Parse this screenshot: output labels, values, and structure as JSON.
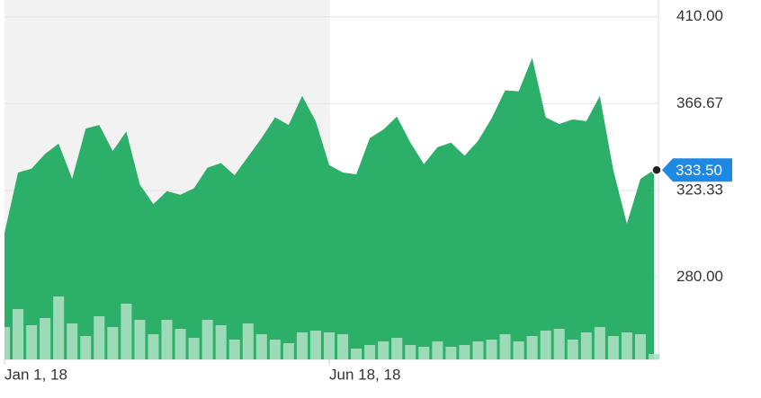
{
  "chart_data": {
    "type": "area",
    "categories": [
      "Jan 1, 18",
      null,
      null,
      null,
      null,
      null,
      null,
      null,
      null,
      null,
      null,
      null,
      null,
      null,
      null,
      null,
      null,
      null,
      null,
      null,
      null,
      null,
      null,
      null,
      "Jun 18, 18",
      null,
      null,
      null,
      null,
      null,
      null,
      null,
      null,
      null,
      null,
      null,
      null,
      null,
      null,
      null,
      null,
      null,
      null,
      null,
      null,
      null,
      null,
      null,
      null
    ],
    "values": [
      302.1,
      332.3,
      334.2,
      341.6,
      346.7,
      329.1,
      354.2,
      356.0,
      343.0,
      352.8,
      326.3,
      316.5,
      323.0,
      321.2,
      324.4,
      334.7,
      337.0,
      330.9,
      340.2,
      349.5,
      359.8,
      356.0,
      370.5,
      357.9,
      336.0,
      332.3,
      331.4,
      349.5,
      353.7,
      360.2,
      347.2,
      336.5,
      344.9,
      347.2,
      340.7,
      348.1,
      359.3,
      373.3,
      372.8,
      389.5,
      359.8,
      356.5,
      358.8,
      357.9,
      370.5,
      333.3,
      306.7,
      329.1,
      333.5
    ],
    "color": "#21ab60",
    "volumes": [
      36,
      56,
      38,
      46,
      70,
      40,
      26,
      48,
      36,
      62,
      44,
      28,
      44,
      34,
      24,
      44,
      38,
      22,
      40,
      28,
      22,
      18,
      30,
      32,
      30,
      28,
      12,
      16,
      20,
      24,
      16,
      14,
      20,
      14,
      16,
      20,
      22,
      28,
      20,
      26,
      32,
      34,
      22,
      30,
      36,
      26,
      30,
      28,
      6
    ],
    "volume_color": "#a9dfc1",
    "vlim": [
      0,
      100
    ],
    "current_price": {
      "value": 333.5,
      "label": "333.50"
    },
    "ylim": [
      239,
      418.4
    ],
    "yticks": [
      {
        "value": 410,
        "label": "410.00"
      },
      {
        "value": 366.67,
        "label": "366.67"
      },
      {
        "value": 323.33,
        "label": "323.33"
      },
      {
        "value": 280,
        "label": "280.00"
      }
    ],
    "grid": true
  }
}
